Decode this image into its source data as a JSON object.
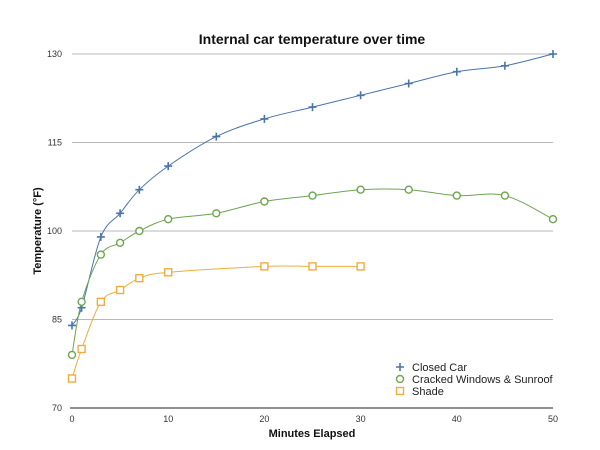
{
  "chart_data": {
    "type": "line",
    "title": "Internal car temperature over time",
    "xlabel": "Minutes Elapsed",
    "ylabel": "Temperature (°F)",
    "xlim": [
      0,
      50
    ],
    "ylim": [
      70,
      130
    ],
    "x_ticks": [
      "0",
      "10",
      "20",
      "30",
      "40",
      "50"
    ],
    "y_ticks": [
      "70",
      "85",
      "100",
      "115",
      "130"
    ],
    "grid": true,
    "legend_position": "bottom-right",
    "series": [
      {
        "name": "Closed Car",
        "color": "#4a74aa",
        "marker": "plus",
        "x": [
          0,
          1,
          3,
          5,
          7,
          10,
          15,
          20,
          25,
          30,
          35,
          40,
          45,
          50
        ],
        "y": [
          84,
          87,
          99,
          103,
          107,
          111,
          116,
          119,
          121,
          123,
          125,
          127,
          128,
          130
        ]
      },
      {
        "name": "Cracked Windows & Sunroof",
        "color": "#6ea550",
        "marker": "circle",
        "x": [
          0,
          1,
          3,
          5,
          7,
          10,
          15,
          20,
          25,
          30,
          35,
          40,
          45,
          50
        ],
        "y": [
          79,
          88,
          96,
          98,
          100,
          102,
          103,
          105,
          106,
          107,
          107,
          106,
          106,
          102
        ]
      },
      {
        "name": "Shade",
        "color": "#f0ac3c",
        "marker": "square",
        "x": [
          0,
          1,
          3,
          5,
          7,
          10,
          20,
          25,
          30
        ],
        "y": [
          75,
          80,
          88,
          90,
          92,
          93,
          94,
          94,
          94
        ]
      }
    ]
  }
}
